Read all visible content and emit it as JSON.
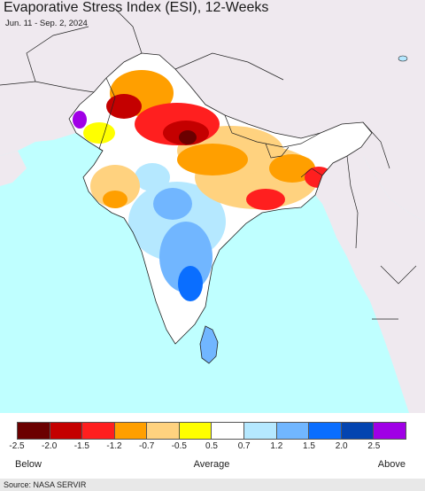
{
  "title": "Evaporative Stress Index (ESI), 12-Weeks",
  "date_range": "Jun. 11 - Sep. 2, 2024",
  "colors": {
    "ocean": "#bfffff",
    "outside_land": "#efe9ef",
    "land_neutral": "#ffffff",
    "border": "#222222"
  },
  "legend": {
    "bins": [
      {
        "color": "#6b0000"
      },
      {
        "color": "#c40000"
      },
      {
        "color": "#ff1f1f"
      },
      {
        "color": "#ff9f00"
      },
      {
        "color": "#ffd27f"
      },
      {
        "color": "#ffff00"
      },
      {
        "color": "#ffffff"
      },
      {
        "color": "#b5e8ff"
      },
      {
        "color": "#71b6ff"
      },
      {
        "color": "#0a6eff"
      },
      {
        "color": "#0344b0"
      },
      {
        "color": "#a000e6"
      }
    ],
    "ticks": [
      "-2.5",
      "-2.0",
      "-1.5",
      "-1.2",
      "-0.7",
      "-0.5",
      "0.5",
      "0.7",
      "1.2",
      "1.5",
      "2.0",
      "2.5"
    ],
    "below_label": "Below",
    "average_label": "Average",
    "above_label": "Above"
  },
  "source": "Source: NASA SERVIR"
}
